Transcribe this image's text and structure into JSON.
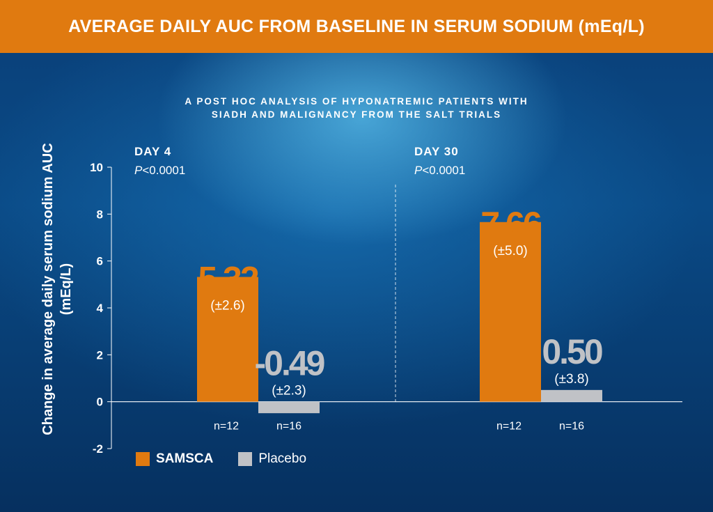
{
  "title": "AVERAGE DAILY AUC FROM BASELINE IN SERUM SODIUM (mEq/L)",
  "subtitle_lines": [
    "A POST HOC ANALYSIS OF HYPONATREMIC PATIENTS WITH",
    "SIADH AND MALIGNANCY FROM THE SALT TRIALS"
  ],
  "colors": {
    "samsca": "#e07a10",
    "placebo": "#c0c2c6",
    "samsca_label": "#e07a10",
    "placebo_label": "#c0c2c6",
    "title_bar": "#e07a10"
  },
  "chart_data": {
    "type": "bar",
    "ylabel": "Change in average daily serum sodium AUC (mEq/L)",
    "ylim": [
      -2,
      10
    ],
    "yticks": [
      -2,
      0,
      2,
      4,
      6,
      8,
      10
    ],
    "panels": [
      {
        "label": "DAY 4",
        "p_prefix": "P",
        "p_value": "<0.0001",
        "bars": [
          {
            "series": "SAMSCA",
            "value": 5.32,
            "value_label": "5.32",
            "sd_label": "(±2.6)",
            "n_label": "n=12"
          },
          {
            "series": "Placebo",
            "value": -0.49,
            "value_label": "-0.49",
            "sd_label": "(±2.3)",
            "n_label": "n=16"
          }
        ]
      },
      {
        "label": "DAY 30",
        "p_prefix": "P",
        "p_value": "<0.0001",
        "bars": [
          {
            "series": "SAMSCA",
            "value": 7.66,
            "value_label": "7.66",
            "sd_label": "(±5.0)",
            "n_label": "n=12"
          },
          {
            "series": "Placebo",
            "value": 0.5,
            "value_label": "0.50",
            "sd_label": "(±3.8)",
            "n_label": "n=16"
          }
        ]
      }
    ],
    "legend": [
      {
        "name": "SAMSCA"
      },
      {
        "name": "Placebo"
      }
    ]
  }
}
